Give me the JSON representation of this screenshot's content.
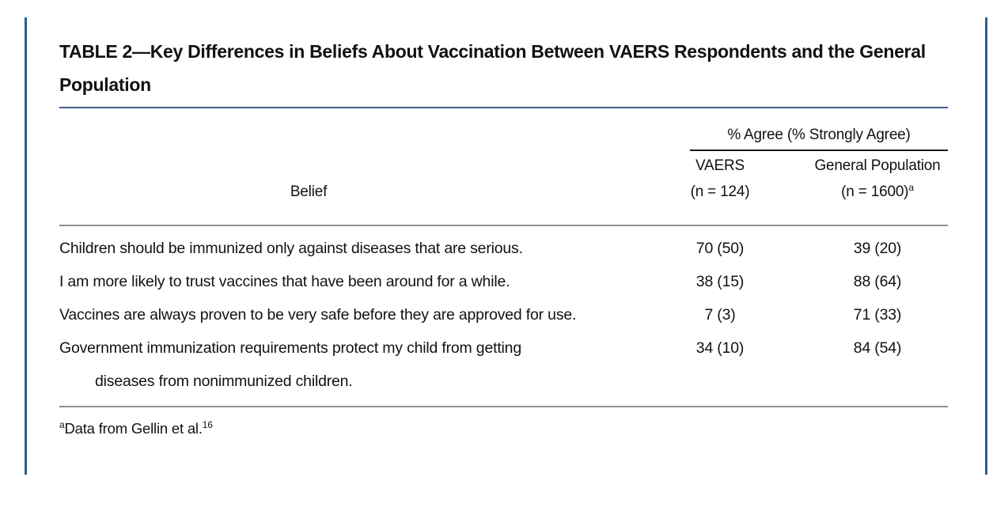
{
  "page": {
    "title": "TABLE 2—Key Differences in Beliefs About Vaccination Between VAERS Respondents and the General Population"
  },
  "table": {
    "spanner": "% Agree (% Strongly Agree)",
    "belief_header": "Belief",
    "vaers_header_line1": "VAERS",
    "vaers_header_line2": "(n = 124)",
    "genpop_header_line1": "General Population",
    "genpop_header_line2": "(n = 1600)",
    "genpop_header_sup": "a",
    "rows": [
      {
        "belief": "Children should be immunized only against diseases that are serious.",
        "vaers": "70 (50)",
        "genpop": "39 (20)"
      },
      {
        "belief": "I am more likely to trust vaccines that have been around for a while.",
        "vaers": "38 (15)",
        "genpop": "88 (64)"
      },
      {
        "belief": "Vaccines are always proven to be very safe before they are approved for use.",
        "vaers": "7 (3)",
        "genpop": "71 (33)"
      },
      {
        "belief": "Government immunization requirements protect my child from getting",
        "belief2": "diseases from nonimmunized children.",
        "vaers": "34 (10)",
        "genpop": "84 (54)"
      }
    ],
    "footnote_sup": "a",
    "footnote_text": "Data from Gellin et al.",
    "footnote_ref": "16"
  },
  "colors": {
    "accent_blue": "#2e5d8c",
    "title_rule_blue": "#41618a",
    "rule_gray": "#8f8f8f",
    "rule_dark": "#1a1a1a",
    "text": "#121212"
  }
}
